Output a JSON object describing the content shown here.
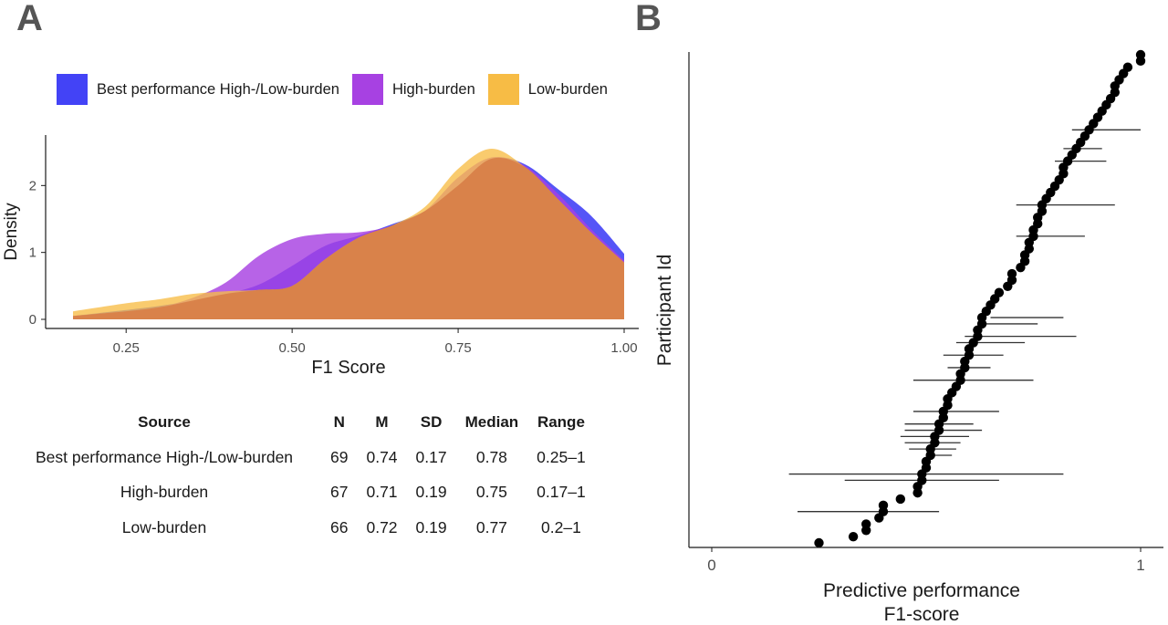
{
  "panels": {
    "a": "A",
    "b": "B"
  },
  "colors": {
    "best": "#4343f6",
    "high": "#a741e2",
    "low": "#f7bc45",
    "overlap": "#d9824a",
    "points": "#000000",
    "axis": "#1a1a1a",
    "tick_text": "#4d4d4d"
  },
  "legend": [
    {
      "label": "Best performance High-/Low-burden",
      "color": "#4343f6"
    },
    {
      "label": "High-burden",
      "color": "#a741e2"
    },
    {
      "label": "Low-burden",
      "color": "#f7bc45"
    }
  ],
  "table": {
    "headers": [
      "Source",
      "N",
      "M",
      "SD",
      "Median",
      "Range"
    ],
    "rows": [
      [
        "Best performance High-/Low-burden",
        "69",
        "0.74",
        "0.17",
        "0.78",
        "0.25–1"
      ],
      [
        "High-burden",
        "67",
        "0.71",
        "0.19",
        "0.75",
        "0.17–1"
      ],
      [
        "Low-burden",
        "66",
        "0.72",
        "0.19",
        "0.77",
        "0.2–1"
      ]
    ]
  },
  "chart_data": [
    {
      "type": "area",
      "chart": "density",
      "xlabel": "F1 Score",
      "ylabel": "Density",
      "xlim": [
        0.17,
        1.0
      ],
      "ylim": [
        0,
        2.7
      ],
      "xticks": [
        0.25,
        0.5,
        0.75,
        1.0
      ],
      "xtick_labels": [
        "0.25",
        "0.50",
        "0.75",
        "1.00"
      ],
      "yticks": [
        0,
        1,
        2
      ],
      "ytick_labels": [
        "0",
        "1",
        "2"
      ],
      "grid": false,
      "legend_position": "top",
      "x": [
        0.17,
        0.25,
        0.3,
        0.35,
        0.4,
        0.45,
        0.5,
        0.55,
        0.6,
        0.65,
        0.7,
        0.75,
        0.8,
        0.85,
        0.9,
        0.95,
        1.0
      ],
      "series": [
        {
          "name": "Best performance High-/Low-burden",
          "key": "best",
          "values": [
            0.05,
            0.14,
            0.2,
            0.28,
            0.38,
            0.52,
            0.8,
            1.1,
            1.25,
            1.42,
            1.62,
            2.0,
            2.4,
            2.32,
            1.95,
            1.55,
            0.98
          ]
        },
        {
          "name": "High-burden",
          "key": "high",
          "values": [
            0.05,
            0.12,
            0.18,
            0.32,
            0.55,
            0.95,
            1.2,
            1.28,
            1.3,
            1.4,
            1.62,
            2.12,
            2.42,
            2.3,
            1.88,
            1.35,
            0.88
          ]
        },
        {
          "name": "Low-burden",
          "key": "low",
          "values": [
            0.12,
            0.24,
            0.3,
            0.38,
            0.42,
            0.44,
            0.5,
            0.9,
            1.22,
            1.4,
            1.68,
            2.25,
            2.55,
            2.28,
            1.8,
            1.3,
            0.85
          ]
        }
      ]
    },
    {
      "type": "scatter",
      "chart": "participants",
      "xlabel": "Predictive performance\nF1-score",
      "xlabel_lines": [
        "Predictive performance",
        "F1-score"
      ],
      "ylabel": "Participant Id",
      "xlim": [
        -0.05,
        1.05
      ],
      "xticks": [
        0,
        1
      ],
      "xtick_labels": [
        "0",
        "1"
      ],
      "grid": false,
      "points": [
        0.25,
        0.33,
        0.36,
        0.36,
        0.39,
        0.4,
        0.4,
        0.44,
        0.48,
        0.48,
        0.49,
        0.49,
        0.5,
        0.5,
        0.51,
        0.51,
        0.52,
        0.52,
        0.53,
        0.53,
        0.54,
        0.54,
        0.55,
        0.55,
        0.56,
        0.57,
        0.58,
        0.58,
        0.59,
        0.59,
        0.6,
        0.6,
        0.61,
        0.62,
        0.62,
        0.63,
        0.63,
        0.64,
        0.65,
        0.66,
        0.67,
        0.69,
        0.7,
        0.7,
        0.72,
        0.73,
        0.73,
        0.74,
        0.74,
        0.75,
        0.75,
        0.76,
        0.76,
        0.77,
        0.77,
        0.78,
        0.79,
        0.8,
        0.81,
        0.82,
        0.82,
        0.83,
        0.84,
        0.85,
        0.86,
        0.87,
        0.88,
        0.89,
        0.9,
        0.91,
        0.92,
        0.93,
        0.94,
        0.94,
        0.95,
        0.96,
        0.97,
        1.0,
        1.0
      ],
      "error_bars": [
        {
          "index": 66,
          "low": 0.84,
          "high": 1.0
        },
        {
          "index": 63,
          "low": 0.82,
          "high": 0.91
        },
        {
          "index": 61,
          "low": 0.8,
          "high": 0.92
        },
        {
          "index": 54,
          "low": 0.71,
          "high": 0.94
        },
        {
          "index": 49,
          "low": 0.71,
          "high": 0.87
        },
        {
          "index": 36,
          "low": 0.65,
          "high": 0.82
        },
        {
          "index": 35,
          "low": 0.62,
          "high": 0.76
        },
        {
          "index": 33,
          "low": 0.59,
          "high": 0.85
        },
        {
          "index": 32,
          "low": 0.57,
          "high": 0.73
        },
        {
          "index": 30,
          "low": 0.54,
          "high": 0.68
        },
        {
          "index": 28,
          "low": 0.55,
          "high": 0.65
        },
        {
          "index": 26,
          "low": 0.47,
          "high": 0.75
        },
        {
          "index": 21,
          "low": 0.47,
          "high": 0.67
        },
        {
          "index": 19,
          "low": 0.45,
          "high": 0.61
        },
        {
          "index": 18,
          "low": 0.45,
          "high": 0.63
        },
        {
          "index": 17,
          "low": 0.44,
          "high": 0.6
        },
        {
          "index": 16,
          "low": 0.45,
          "high": 0.58
        },
        {
          "index": 15,
          "low": 0.46,
          "high": 0.57
        },
        {
          "index": 14,
          "low": 0.5,
          "high": 0.56
        },
        {
          "index": 11,
          "low": 0.18,
          "high": 0.82
        },
        {
          "index": 10,
          "low": 0.31,
          "high": 0.67
        },
        {
          "index": 5,
          "low": 0.2,
          "high": 0.53
        }
      ]
    }
  ]
}
